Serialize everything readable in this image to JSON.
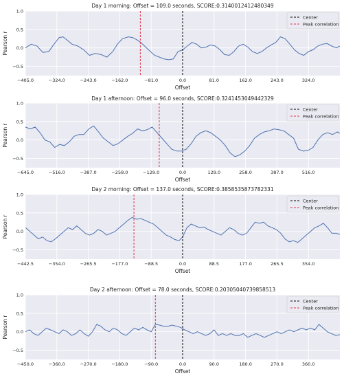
{
  "legend": {
    "center_label": "Center",
    "peak_label": "Peak correlation"
  },
  "colors": {
    "plot_bg": "#eaeaf2",
    "grid": "#ffffff",
    "series": "#4c72b0",
    "center_line": "#000000",
    "peak_line": "#dd3344"
  },
  "chart_data": [
    {
      "type": "line",
      "title": "Day 1 morning: Offset = 109.0 seconds, SCORE:0.3140012412480349",
      "xlabel": "Offset",
      "ylabel": "Pearson r",
      "xlim": [
        -405,
        405
      ],
      "ylim": [
        -0.75,
        1.0
      ],
      "xticks": [
        -405,
        -324,
        -243,
        -162,
        -81,
        0,
        81,
        162,
        243,
        324
      ],
      "xtick_labels": [
        "−405.0",
        "−324.0",
        "−243.0",
        "−162.0",
        "−81.0",
        "0.0",
        "81.0",
        "162.0",
        "243.0",
        "324.0"
      ],
      "yticks": [
        1.0,
        0.5,
        0.0,
        -0.5
      ],
      "ytick_labels": [
        "1.0",
        "0.5",
        "0.0",
        "−0.5"
      ],
      "center": 0,
      "peak": -109,
      "legend_position": "top-right",
      "grid": true,
      "x": [
        -405,
        -390,
        -375,
        -360,
        -345,
        -330,
        -318,
        -308,
        -296,
        -285,
        -270,
        -255,
        -240,
        -225,
        -210,
        -195,
        -180,
        -168,
        -155,
        -140,
        -128,
        -118,
        -108,
        -98,
        -85,
        -72,
        -60,
        -48,
        -36,
        -24,
        -12,
        0,
        12,
        24,
        36,
        48,
        60,
        72,
        84,
        96,
        108,
        120,
        132,
        144,
        156,
        168,
        180,
        192,
        204,
        216,
        228,
        240,
        252,
        264,
        276,
        288,
        300,
        312,
        324,
        336,
        348,
        360,
        372,
        384,
        396,
        405
      ],
      "y": [
        0.0,
        0.1,
        0.05,
        -0.12,
        -0.1,
        0.12,
        0.28,
        0.3,
        0.2,
        0.1,
        0.05,
        -0.05,
        -0.2,
        -0.15,
        -0.18,
        -0.25,
        -0.1,
        0.1,
        0.25,
        0.3,
        0.28,
        0.22,
        0.15,
        0.05,
        -0.08,
        -0.2,
        -0.25,
        -0.3,
        -0.32,
        -0.3,
        -0.1,
        -0.05,
        0.05,
        0.15,
        0.1,
        0.0,
        0.02,
        0.08,
        0.05,
        -0.05,
        -0.18,
        -0.2,
        -0.1,
        0.05,
        0.1,
        0.02,
        -0.1,
        -0.15,
        -0.1,
        0.0,
        0.08,
        0.15,
        0.3,
        0.25,
        0.1,
        -0.05,
        -0.15,
        -0.2,
        -0.1,
        -0.05,
        0.05,
        0.1,
        0.12,
        0.05,
        0.0,
        0.05
      ]
    },
    {
      "type": "line",
      "title": "Day 1 afternoon: Offset = 96.0 seconds, SCORE:0.3241453049442329",
      "xlabel": "Offset",
      "ylabel": "Pearson r",
      "xlim": [
        -645,
        645
      ],
      "ylim": [
        -0.75,
        1.0
      ],
      "xticks": [
        -645,
        -516,
        -387,
        -258,
        -129,
        0,
        129,
        258,
        387,
        516
      ],
      "xtick_labels": [
        "−645.0",
        "−516.0",
        "−387.0",
        "−258.0",
        "−129.0",
        "0.0",
        "129.0",
        "258.0",
        "387.0",
        "516.0"
      ],
      "yticks": [
        1.0,
        0.5,
        0.0,
        -0.5
      ],
      "ytick_labels": [
        "1.0",
        "0.5",
        "0.0",
        "−0.5"
      ],
      "center": 0,
      "peak": -96,
      "legend_position": "top-right",
      "grid": true,
      "x": [
        -645,
        -625,
        -605,
        -585,
        -565,
        -545,
        -525,
        -505,
        -485,
        -465,
        -445,
        -425,
        -405,
        -385,
        -365,
        -345,
        -325,
        -305,
        -285,
        -265,
        -245,
        -225,
        -205,
        -185,
        -165,
        -145,
        -125,
        -105,
        -85,
        -65,
        -45,
        -25,
        -5,
        15,
        35,
        55,
        75,
        95,
        115,
        135,
        155,
        175,
        195,
        215,
        235,
        255,
        275,
        295,
        315,
        335,
        355,
        375,
        395,
        415,
        435,
        455,
        475,
        495,
        515,
        535,
        555,
        575,
        595,
        615,
        635,
        645
      ],
      "y": [
        0.35,
        0.3,
        0.35,
        0.2,
        0.0,
        -0.05,
        -0.2,
        -0.12,
        -0.15,
        -0.05,
        0.1,
        0.15,
        0.15,
        0.3,
        0.38,
        0.22,
        0.05,
        -0.05,
        -0.15,
        -0.1,
        0.0,
        0.1,
        0.18,
        0.3,
        0.25,
        0.28,
        0.35,
        0.2,
        0.05,
        -0.1,
        -0.25,
        -0.3,
        -0.3,
        -0.25,
        -0.1,
        0.1,
        0.2,
        0.25,
        0.2,
        0.1,
        0.0,
        -0.15,
        -0.35,
        -0.45,
        -0.4,
        -0.3,
        -0.15,
        0.05,
        0.15,
        0.22,
        0.25,
        0.3,
        0.28,
        0.25,
        0.15,
        0.05,
        -0.25,
        -0.3,
        -0.28,
        -0.2,
        0.0,
        0.15,
        0.2,
        0.15,
        0.22,
        0.18
      ]
    },
    {
      "type": "line",
      "title": "Day 2 morning: Offset = 137.0 seconds, SCORE:0.3858535873782331",
      "xlabel": "Offset",
      "ylabel": "Pearson r",
      "xlim": [
        -442.5,
        442.5
      ],
      "ylim": [
        -0.75,
        1.0
      ],
      "xticks": [
        -442.5,
        -354,
        -265.5,
        -177,
        -88.5,
        0,
        88.5,
        177,
        265.5,
        354
      ],
      "xtick_labels": [
        "−442.5",
        "−354.0",
        "−265.5",
        "−177.0",
        "−88.5",
        "0.0",
        "88.5",
        "177.0",
        "265.5",
        "354.0"
      ],
      "yticks": [
        1.0,
        0.5,
        0.0,
        -0.5
      ],
      "ytick_labels": [
        "1.0",
        "0.5",
        "0.0",
        "−0.5"
      ],
      "center": 0,
      "peak": -137,
      "legend_position": "top-right",
      "grid": true,
      "x": [
        -442,
        -430,
        -418,
        -406,
        -394,
        -382,
        -370,
        -358,
        -346,
        -334,
        -322,
        -310,
        -298,
        -286,
        -274,
        -262,
        -250,
        -238,
        -226,
        -214,
        -202,
        -190,
        -178,
        -166,
        -154,
        -142,
        -130,
        -118,
        -106,
        -94,
        -82,
        -70,
        -58,
        -46,
        -34,
        -22,
        -10,
        0,
        12,
        24,
        36,
        48,
        60,
        72,
        84,
        96,
        108,
        120,
        132,
        144,
        156,
        168,
        180,
        192,
        204,
        216,
        228,
        240,
        252,
        264,
        276,
        288,
        300,
        312,
        324,
        336,
        348,
        360,
        372,
        384,
        396,
        408,
        420,
        432,
        442
      ],
      "y": [
        0.1,
        0.0,
        -0.1,
        -0.2,
        -0.15,
        -0.25,
        -0.28,
        -0.2,
        -0.1,
        0.0,
        0.1,
        0.05,
        0.15,
        0.05,
        -0.05,
        -0.1,
        -0.05,
        0.05,
        0.0,
        -0.1,
        -0.05,
        0.0,
        0.1,
        0.2,
        0.3,
        0.38,
        0.33,
        0.35,
        0.3,
        0.25,
        0.2,
        0.1,
        0.0,
        -0.1,
        -0.15,
        -0.22,
        -0.25,
        -0.15,
        0.1,
        0.2,
        0.15,
        0.1,
        0.12,
        0.05,
        0.0,
        -0.05,
        -0.1,
        0.0,
        0.1,
        0.05,
        -0.05,
        -0.1,
        -0.05,
        0.1,
        0.25,
        0.22,
        0.25,
        0.15,
        0.1,
        0.05,
        -0.05,
        -0.2,
        -0.28,
        -0.25,
        -0.3,
        -0.2,
        -0.1,
        0.0,
        0.1,
        0.15,
        0.22,
        0.1,
        -0.05,
        -0.05,
        -0.08
      ]
    },
    {
      "type": "line",
      "title": "Day 2 afternoon: Offset = 78.0 seconds, SCORE:0.20305040739858513",
      "xlabel": "Offset",
      "ylabel": "Pearson r",
      "xlim": [
        -450,
        450
      ],
      "ylim": [
        -0.75,
        1.0
      ],
      "xticks": [
        -450,
        -360,
        -270,
        -180,
        -90,
        0,
        90,
        180,
        270,
        360
      ],
      "xtick_labels": [
        "−450.0",
        "−360.0",
        "−270.0",
        "−180.0",
        "−90.0",
        "0.0",
        "90.0",
        "180.0",
        "270.0",
        "360.0"
      ],
      "yticks": [
        1.0,
        0.5,
        0.0,
        -0.5
      ],
      "ytick_labels": [
        "1.0",
        "0.5",
        "0.0",
        "−0.5"
      ],
      "center": 0,
      "peak": -78,
      "legend_position": "top-right",
      "grid": true,
      "x": [
        -450,
        -438,
        -426,
        -414,
        -402,
        -390,
        -378,
        -366,
        -354,
        -342,
        -330,
        -318,
        -306,
        -294,
        -282,
        -270,
        -258,
        -246,
        -234,
        -222,
        -210,
        -198,
        -186,
        -174,
        -162,
        -150,
        -138,
        -126,
        -114,
        -102,
        -90,
        -78,
        -66,
        -54,
        -42,
        -30,
        -18,
        -6,
        6,
        18,
        30,
        42,
        54,
        66,
        78,
        90,
        102,
        114,
        126,
        138,
        150,
        162,
        174,
        186,
        198,
        210,
        222,
        234,
        246,
        258,
        270,
        282,
        294,
        306,
        318,
        330,
        342,
        354,
        366,
        378,
        390,
        402,
        414,
        426,
        438,
        450
      ],
      "y": [
        0.0,
        0.05,
        -0.05,
        -0.1,
        0.0,
        0.1,
        0.05,
        0.0,
        -0.05,
        0.05,
        0.0,
        -0.1,
        -0.05,
        0.05,
        -0.05,
        -0.12,
        0.0,
        0.2,
        0.15,
        0.05,
        0.0,
        0.1,
        0.05,
        -0.05,
        -0.1,
        0.0,
        0.1,
        0.05,
        0.12,
        0.05,
        0.0,
        0.2,
        0.18,
        0.15,
        0.15,
        0.18,
        0.15,
        0.12,
        0.05,
        0.0,
        -0.05,
        0.0,
        -0.05,
        -0.1,
        -0.05,
        0.05,
        -0.1,
        -0.05,
        -0.1,
        -0.05,
        -0.1,
        -0.1,
        -0.05,
        -0.15,
        -0.1,
        -0.05,
        -0.1,
        -0.15,
        -0.1,
        -0.05,
        0.0,
        -0.05,
        0.0,
        0.05,
        0.0,
        0.05,
        0.1,
        0.05,
        0.1,
        0.05,
        0.2,
        0.1,
        0.0,
        -0.05,
        -0.1,
        -0.08
      ]
    }
  ]
}
